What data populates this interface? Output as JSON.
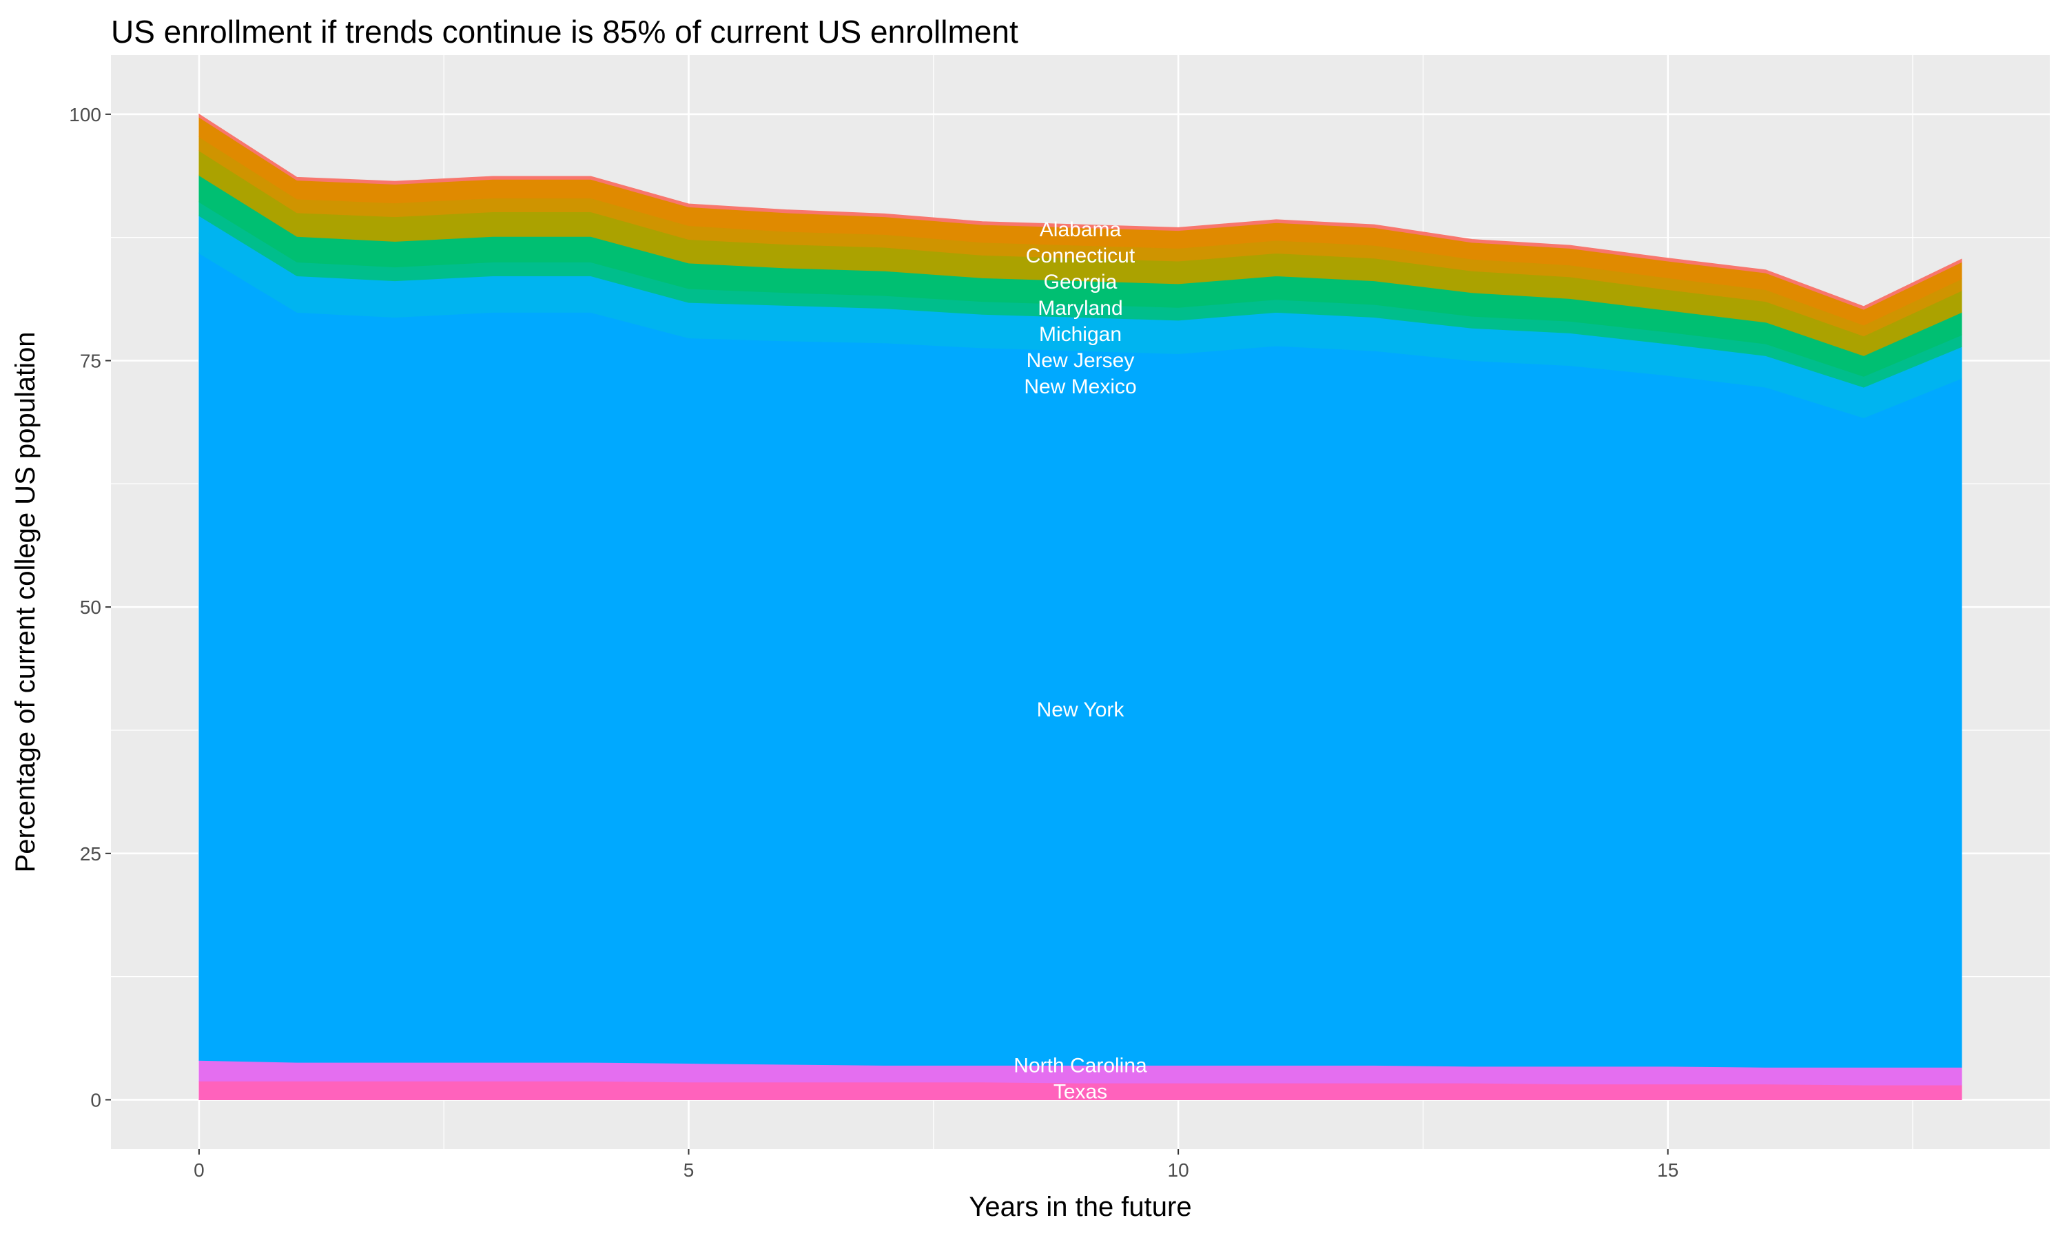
{
  "chart_data": {
    "type": "area",
    "stacked": true,
    "title": "US enrollment if trends continue is 85% of current US enrollment",
    "xlabel": "Years in the future",
    "ylabel": "Percentage of current college US population",
    "xlim": [
      -0.9,
      18.9
    ],
    "ylim": [
      -5,
      106
    ],
    "x_ticks": [
      0,
      5,
      10,
      15
    ],
    "y_ticks": [
      0,
      25,
      50,
      75,
      100
    ],
    "grid": true,
    "legend": "none",
    "x": [
      0,
      1,
      2,
      3,
      4,
      5,
      6,
      7,
      8,
      9,
      10,
      11,
      12,
      13,
      14,
      15,
      16,
      17,
      18
    ],
    "series": [
      {
        "color": "#FF62BC",
        "values": [
          1.9,
          1.9,
          1.9,
          1.9,
          1.9,
          1.8,
          1.8,
          1.8,
          1.8,
          1.7,
          1.7,
          1.7,
          1.7,
          1.7,
          1.6,
          1.6,
          1.6,
          1.5,
          1.5
        ]
      },
      {
        "color": "#E46EF0",
        "values": [
          2.1,
          1.9,
          1.9,
          1.9,
          1.9,
          1.9,
          1.8,
          1.7,
          1.7,
          1.8,
          1.8,
          1.8,
          1.8,
          1.7,
          1.8,
          1.8,
          1.7,
          1.8,
          1.8
        ]
      },
      {
        "color": "#00A9FF",
        "values": [
          81.9,
          76.1,
          75.6,
          76.1,
          76.1,
          73.6,
          73.4,
          73.3,
          72.8,
          72.5,
          72.2,
          73.0,
          72.5,
          71.6,
          71.1,
          70.1,
          69.0,
          65.9,
          69.9
        ]
      },
      {
        "color": "#00B4F0",
        "values": [
          3.8,
          3.7,
          3.7,
          3.7,
          3.7,
          3.6,
          3.6,
          3.5,
          3.4,
          3.4,
          3.4,
          3.4,
          3.4,
          3.3,
          3.3,
          3.2,
          3.2,
          3.1,
          3.2
        ]
      },
      {
        "color": "#00BE8C",
        "values": [
          1.4,
          1.4,
          1.4,
          1.4,
          1.4,
          1.4,
          1.3,
          1.3,
          1.3,
          1.3,
          1.3,
          1.3,
          1.3,
          1.2,
          1.2,
          1.2,
          1.2,
          1.1,
          1.2
        ]
      },
      {
        "color": "#00BF72",
        "values": [
          2.7,
          2.6,
          2.6,
          2.6,
          2.6,
          2.6,
          2.5,
          2.5,
          2.4,
          2.4,
          2.4,
          2.4,
          2.4,
          2.4,
          2.3,
          2.2,
          2.2,
          2.1,
          2.3
        ]
      },
      {
        "color": "#ABA200",
        "values": [
          2.5,
          2.4,
          2.5,
          2.5,
          2.5,
          2.4,
          2.4,
          2.4,
          2.3,
          2.3,
          2.3,
          2.3,
          2.3,
          2.2,
          2.2,
          2.1,
          2.1,
          2.0,
          2.2
        ]
      },
      {
        "color": "#CF9400",
        "values": [
          1.4,
          1.4,
          1.4,
          1.4,
          1.4,
          1.4,
          1.3,
          1.3,
          1.3,
          1.3,
          1.3,
          1.3,
          1.3,
          1.2,
          1.2,
          1.2,
          1.2,
          1.1,
          1.2
        ]
      },
      {
        "color": "#E08A00",
        "values": [
          2.0,
          1.9,
          1.9,
          1.9,
          1.9,
          1.9,
          1.9,
          1.8,
          1.8,
          1.8,
          1.8,
          1.8,
          1.8,
          1.7,
          1.7,
          1.7,
          1.7,
          1.6,
          1.7
        ]
      },
      {
        "color": "#F8766D",
        "values": [
          0.3,
          0.3,
          0.3,
          0.3,
          0.3,
          0.3,
          0.3,
          0.3,
          0.3,
          0.3,
          0.3,
          0.3,
          0.3,
          0.3,
          0.3,
          0.3,
          0.3,
          0.3,
          0.3
        ]
      }
    ],
    "annotations": [
      {
        "text": "Alabama",
        "x": 9,
        "y": 88.3
      },
      {
        "text": "Connecticut",
        "x": 9,
        "y": 86.1
      },
      {
        "text": "Georgia",
        "x": 9,
        "y": 84.0
      },
      {
        "text": "Maryland",
        "x": 9,
        "y": 82.0
      },
      {
        "text": "Michigan",
        "x": 9,
        "y": 79.7
      },
      {
        "text": "New Jersey",
        "x": 9,
        "y": 77.5
      },
      {
        "text": "New Mexico",
        "x": 9,
        "y": 75.9
      },
      {
        "text": "New York",
        "x": 9,
        "y": 39.6
      },
      {
        "text": "North Carolina",
        "x": 9,
        "y": 3.5
      },
      {
        "text": "Texas",
        "x": 9,
        "y": 1.1
      }
    ],
    "panel_background": "#EBEBEB"
  }
}
